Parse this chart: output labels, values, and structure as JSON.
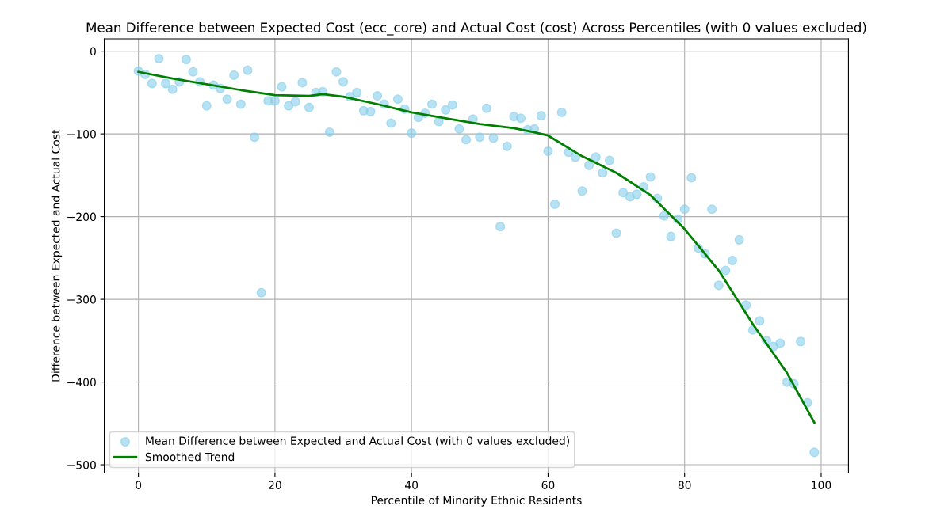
{
  "chart_data": {
    "type": "scatter",
    "title": "Mean Difference between Expected Cost (ecc_core) and Actual Cost (cost) Across Percentiles (with 0 values excluded)",
    "xlabel": "Percentile of Minority Ethnic Residents",
    "ylabel": "Difference between Expected and Actual Cost",
    "series": [
      {
        "name": "Mean Difference between Expected and Actual Cost (with 0 values excluded)",
        "color": "#87ceeb",
        "marker": "circle",
        "x": [
          0,
          1,
          2,
          3,
          4,
          5,
          6,
          7,
          8,
          9,
          10,
          11,
          12,
          13,
          14,
          15,
          16,
          17,
          18,
          19,
          20,
          21,
          22,
          23,
          24,
          25,
          26,
          27,
          28,
          29,
          30,
          31,
          32,
          33,
          34,
          35,
          36,
          37,
          38,
          39,
          40,
          41,
          42,
          43,
          44,
          45,
          46,
          47,
          48,
          49,
          50,
          51,
          52,
          53,
          54,
          55,
          56,
          57,
          58,
          59,
          60,
          61,
          62,
          63,
          64,
          65,
          66,
          67,
          68,
          69,
          70,
          71,
          72,
          73,
          74,
          75,
          76,
          77,
          78,
          79,
          80,
          81,
          82,
          83,
          84,
          85,
          86,
          87,
          88,
          89,
          90,
          91,
          92,
          93,
          94,
          95,
          96,
          97,
          98,
          99
        ],
        "values": [
          -24,
          -28,
          -39,
          -9,
          -39,
          -46,
          -37,
          -10,
          -25,
          -37,
          -66,
          -41,
          -45,
          -58,
          -29,
          -64,
          -23,
          -104,
          -292,
          -60,
          -60,
          -43,
          -66,
          -61,
          -38,
          -68,
          -50,
          -49,
          -98,
          -25,
          -37,
          -55,
          -50,
          -72,
          -73,
          -54,
          -64,
          -87,
          -58,
          -70,
          -99,
          -80,
          -75,
          -64,
          -85,
          -71,
          -65,
          -94,
          -107,
          -82,
          -104,
          -69,
          -105,
          -212,
          -115,
          -79,
          -81,
          -95,
          -94,
          -78,
          -121,
          -185,
          -74,
          -122,
          -128,
          -169,
          -138,
          -128,
          -147,
          -132,
          -220,
          -171,
          -176,
          -173,
          -164,
          -152,
          -178,
          -199,
          -224,
          -203,
          -191,
          -153,
          -238,
          -245,
          -191,
          -283,
          -265,
          -253,
          -228,
          -307,
          -337,
          -326,
          -350,
          -357,
          -353,
          -400,
          -402,
          -351,
          -425,
          -485
        ]
      },
      {
        "name": "Smoothed Trend",
        "type": "line",
        "color": "#008000",
        "marker": "none",
        "line_style": "solid",
        "x": [
          0,
          5,
          10,
          15,
          20,
          25,
          27,
          30,
          35,
          40,
          45,
          50,
          55,
          58,
          60,
          65,
          70,
          75,
          80,
          85,
          90,
          95,
          99
        ],
        "values": [
          -25,
          -33,
          -40,
          -47,
          -53,
          -54,
          -52,
          -55,
          -64,
          -74,
          -81,
          -88,
          -93,
          -98,
          -102,
          -127,
          -147,
          -174,
          -215,
          -265,
          -330,
          -389,
          -449
        ]
      }
    ],
    "xlim": [
      -5,
      104
    ],
    "ylim": [
      -510,
      15
    ],
    "xticks": [
      0,
      20,
      40,
      60,
      80,
      100
    ],
    "yticks": [
      -500,
      -400,
      -300,
      -200,
      -100,
      0
    ],
    "grid": true,
    "legend": "bottom left"
  }
}
